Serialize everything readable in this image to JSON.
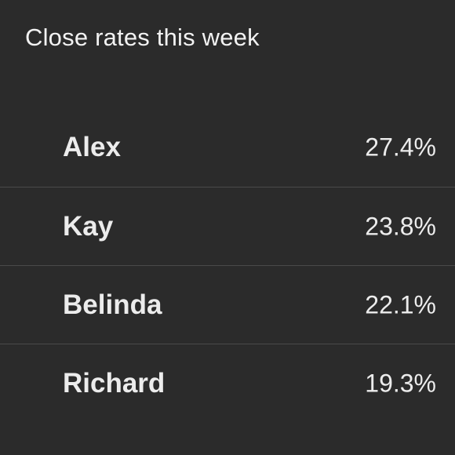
{
  "title": "Close rates this week",
  "rows": [
    {
      "name": "Alex",
      "value": "27.4%"
    },
    {
      "name": "Kay",
      "value": "23.8%"
    },
    {
      "name": "Belinda",
      "value": "22.1%"
    },
    {
      "name": "Richard",
      "value": "19.3%"
    }
  ]
}
